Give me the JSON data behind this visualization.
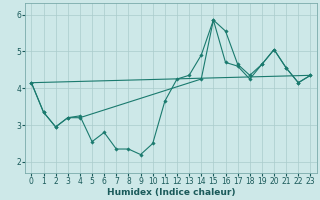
{
  "xlabel": "Humidex (Indice chaleur)",
  "xlim": [
    -0.5,
    23.5
  ],
  "ylim": [
    1.7,
    6.3
  ],
  "yticks": [
    2,
    3,
    4,
    5,
    6
  ],
  "xticks": [
    0,
    1,
    2,
    3,
    4,
    5,
    6,
    7,
    8,
    9,
    10,
    11,
    12,
    13,
    14,
    15,
    16,
    17,
    18,
    19,
    20,
    21,
    22,
    23
  ],
  "bg_color": "#cde8e8",
  "grid_color": "#aacccc",
  "line_color": "#1a7a6e",
  "series": [
    {
      "x": [
        0,
        1,
        2,
        3,
        4,
        5,
        6,
        7,
        8,
        9,
        10,
        11,
        12,
        13,
        14,
        15,
        16,
        17,
        18,
        19,
        20,
        21,
        22,
        23
      ],
      "y": [
        4.15,
        3.35,
        2.95,
        3.2,
        3.25,
        2.55,
        2.8,
        2.35,
        2.35,
        2.2,
        2.5,
        3.65,
        4.25,
        4.35,
        4.9,
        5.85,
        5.55,
        4.65,
        4.35,
        4.65,
        5.05,
        4.55,
        4.15,
        4.35
      ],
      "marker": true
    },
    {
      "x": [
        0,
        1,
        2,
        3,
        4,
        14,
        15,
        16,
        17,
        18,
        19,
        20,
        21,
        22,
        23
      ],
      "y": [
        4.15,
        3.35,
        2.95,
        3.2,
        3.2,
        4.25,
        5.85,
        4.7,
        4.6,
        4.25,
        4.65,
        5.05,
        4.55,
        4.15,
        4.35
      ],
      "marker": true
    },
    {
      "x": [
        0,
        23
      ],
      "y": [
        4.15,
        4.35
      ],
      "marker": false
    }
  ]
}
